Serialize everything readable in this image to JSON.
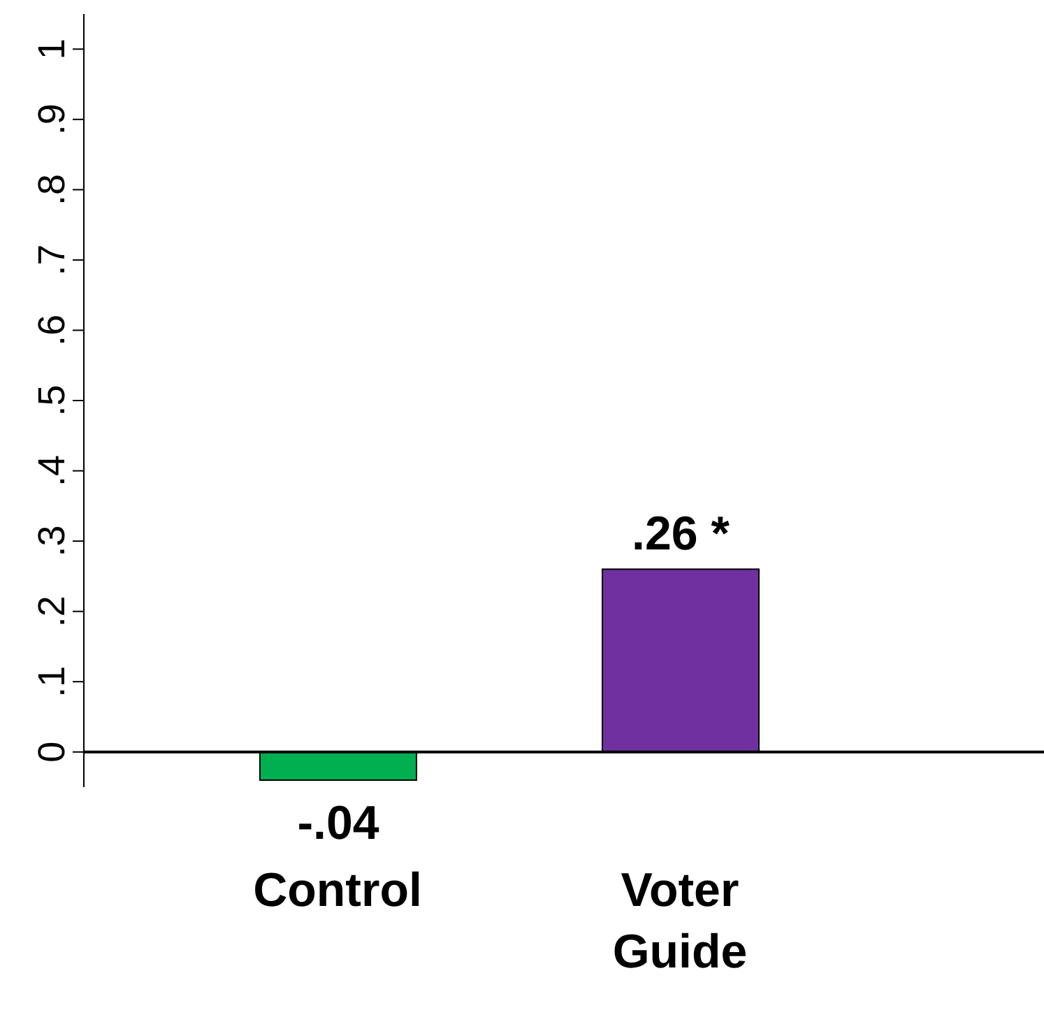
{
  "chart_data": {
    "type": "bar",
    "categories": [
      "Control",
      "Voter Guide"
    ],
    "values": [
      -0.04,
      0.26
    ],
    "colors": [
      "#00b050",
      "#7030a0"
    ],
    "value_labels": [
      "-.04",
      ".26 *"
    ],
    "ylim": [
      -0.05,
      1.05
    ],
    "yticks": [
      0,
      {
        "value": 0.1,
        "label": ".1"
      },
      {
        "value": 0.2,
        "label": ".2"
      },
      {
        "value": 0.3,
        "label": ".3"
      },
      {
        "value": 0.4,
        "label": ".4"
      },
      {
        "value": 0.5,
        "label": ".5"
      },
      {
        "value": 0.6,
        "label": ".6"
      },
      {
        "value": 0.7,
        "label": ".7"
      },
      {
        "value": 0.8,
        "label": ".8"
      },
      {
        "value": 0.9,
        "label": ".9"
      },
      1
    ],
    "grid": false,
    "legend": false
  }
}
